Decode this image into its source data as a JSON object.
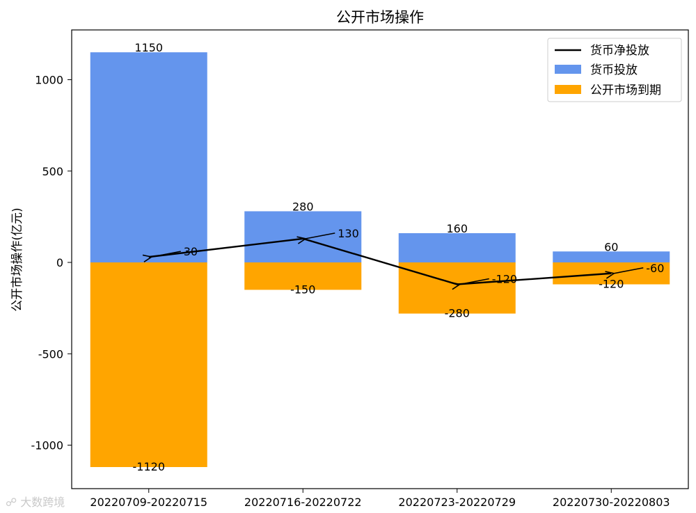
{
  "chart_data": {
    "type": "bar",
    "title": "公开市场操作",
    "ylabel": "公开市场操作(亿元)",
    "xlabel": "",
    "ylim": [
      -1230,
      1250
    ],
    "yticks": [
      1000,
      500,
      0,
      -500,
      -1000
    ],
    "ytick_labels": [
      "1000",
      "500",
      "0",
      "-500",
      "-1000"
    ],
    "categories": [
      "20220709-20220715",
      "20220716-20220722",
      "20220723-20220729",
      "20220730-20220803"
    ],
    "series": [
      {
        "name": "货币投放",
        "kind": "bar",
        "color": "#6495ED",
        "values": [
          1150,
          280,
          160,
          60
        ],
        "labels": [
          "1150",
          "280",
          "160",
          "60"
        ]
      },
      {
        "name": "公开市场到期",
        "kind": "bar",
        "color": "#FFA500",
        "values": [
          -1120,
          -150,
          -280,
          -120
        ],
        "labels": [
          "-1120",
          "-150",
          "-280",
          "-120"
        ]
      },
      {
        "name": "货币净投放",
        "kind": "line",
        "color": "#000000",
        "values": [
          30,
          130,
          -120,
          -60
        ],
        "labels": [
          "30",
          "130",
          "-120",
          "-60"
        ]
      }
    ],
    "legend_position": "top-right",
    "grid": false
  },
  "watermark": "大数跨境"
}
